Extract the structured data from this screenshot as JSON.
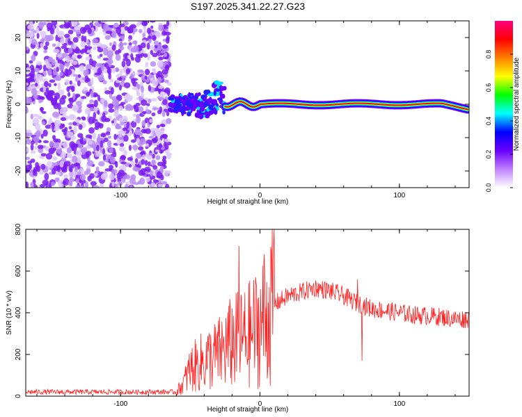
{
  "title": "S197.2025.341.22.27.G23",
  "chart_data": [
    {
      "type": "heatmap",
      "xlabel": "Height of straight line (km)",
      "ylabel": "Frequency (Hz)",
      "xlim": [
        -168,
        150
      ],
      "ylim": [
        -25,
        25
      ],
      "xticks": [
        -100,
        0,
        100
      ],
      "yticks": [
        -20,
        -10,
        0,
        10,
        20
      ],
      "colorbar": {
        "label": "Normalized spectral amplitude",
        "range": [
          0,
          1
        ],
        "ticks": [
          "0.0",
          "0.2",
          "0.4",
          "0.6",
          "0.8"
        ],
        "colors": [
          "#ffffff",
          "#c080ff",
          "#6a00ff",
          "#0000ff",
          "#00ffff",
          "#00ff00",
          "#ffff00",
          "#ff8000",
          "#ff0000",
          "#ff0080"
        ]
      },
      "regions": [
        {
          "name": "noise",
          "x_range": [
            -168,
            -65
          ],
          "freq_range": [
            -25,
            25
          ],
          "amplitude": 0.1
        },
        {
          "name": "onset cluster",
          "x_range": [
            -65,
            -25
          ],
          "freq_range": [
            -7,
            7
          ],
          "amplitude": 0.35
        },
        {
          "name": "signal line",
          "x_range": [
            -25,
            150
          ],
          "freq": 0,
          "amplitude": 0.9
        }
      ]
    },
    {
      "type": "line",
      "xlabel": "Height of straight line (km)",
      "ylabel": "SNR (10 * v/v)",
      "xlim": [
        -168,
        150
      ],
      "ylim": [
        0,
        800
      ],
      "xticks": [
        -100,
        0,
        100
      ],
      "yticks": [
        0,
        200,
        400,
        600,
        800
      ],
      "color": "#ff2020",
      "envelope": {
        "x": [
          -168,
          -60,
          -55,
          -50,
          -40,
          -30,
          -20,
          -10,
          0,
          10,
          20,
          30,
          40,
          50,
          60,
          70,
          80,
          90,
          100,
          110,
          120,
          130,
          140,
          150
        ],
        "y": [
          20,
          20,
          60,
          130,
          170,
          200,
          260,
          280,
          340,
          440,
          480,
          500,
          520,
          505,
          480,
          445,
          420,
          410,
          400,
          390,
          385,
          380,
          370,
          370
        ]
      },
      "spikes": [
        {
          "x": -15,
          "y": 720
        },
        {
          "x": 3,
          "y": 680
        },
        {
          "x": 10,
          "y": 800
        },
        {
          "x": 70,
          "y": 560
        },
        {
          "x": 73,
          "y": 170
        }
      ]
    }
  ]
}
